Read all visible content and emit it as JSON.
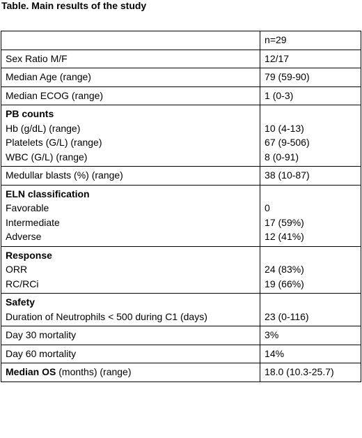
{
  "title": "Table. Main results of the study",
  "header": {
    "label": "",
    "value": "n=29"
  },
  "rows": [
    {
      "label": "Sex Ratio M/F",
      "value": "12/17"
    },
    {
      "label": "Median Age (range)",
      "value": "79 (59-90)"
    },
    {
      "label": "Median ECOG (range)",
      "value": "1 (0-3)"
    }
  ],
  "pb_counts": {
    "heading": "PB counts",
    "items": [
      {
        "label": "Hb (g/dL) (range)",
        "value": "10 (4-13)"
      },
      {
        "label": "Platelets (G/L) (range)",
        "value": "67 (9-506)"
      },
      {
        "label": "WBC (G/L) (range)",
        "value": "8 (0-91)"
      }
    ]
  },
  "medullar_blasts": {
    "label": "Medullar blasts (%) (range)",
    "value": "38 (10-87)"
  },
  "eln": {
    "heading": "ELN classification",
    "items": [
      {
        "label": "Favorable",
        "value": "0"
      },
      {
        "label": "Intermediate",
        "value": "17 (59%)"
      },
      {
        "label": "Adverse",
        "value": "12 (41%)"
      }
    ]
  },
  "response": {
    "heading": "Response",
    "items": [
      {
        "label": "ORR",
        "value": "24 (83%)"
      },
      {
        "label": "RC/RCi",
        "value": "19 (66%)"
      }
    ]
  },
  "safety": {
    "heading": "Safety",
    "items": [
      {
        "label": "Duration of Neutrophils < 500 during C1 (days)",
        "value": "23 (0-116)"
      }
    ]
  },
  "mortality": [
    {
      "label": "Day 30 mortality",
      "value": "3%"
    },
    {
      "label": "Day 60 mortality",
      "value": "14%"
    }
  ],
  "median_os": {
    "label": "Median OS",
    "label_suffix": " (months) (range)",
    "value": "18.0 (10.3-25.7)"
  }
}
